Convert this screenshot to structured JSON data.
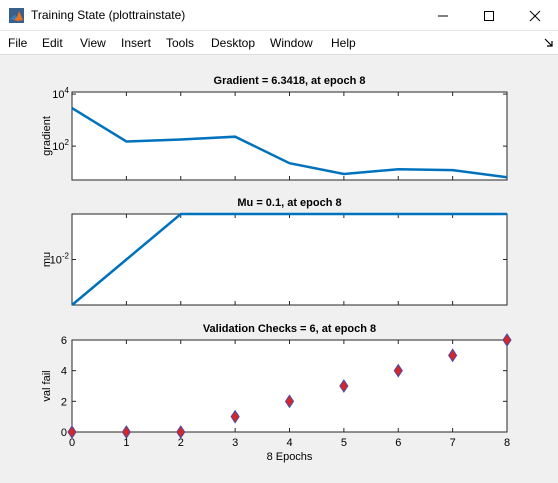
{
  "window": {
    "title": "Training State (plottrainstate)",
    "app_icon": "matlab-icon",
    "buttons": [
      "minimize-icon",
      "maximize-icon",
      "close-icon"
    ]
  },
  "menu": {
    "items": [
      "File",
      "Edit",
      "View",
      "Insert",
      "Tools",
      "Desktop",
      "Window",
      "Help"
    ],
    "dock_icon": "dock-arrow-icon"
  },
  "colors": {
    "line": "#0072bd",
    "marker_fill": "#d62728",
    "marker_edge": "#4a4aa8",
    "axes_bg": "#ffffff",
    "figure_bg": "#f0f0f0"
  },
  "chart_data": [
    {
      "type": "line",
      "title": "Gradient = 6.3418, at epoch 8",
      "ylabel": "gradient",
      "xlabel": "",
      "yscale": "log",
      "y_tick_labels": [
        {
          "base": "10",
          "exp": "4"
        },
        {
          "base": "10",
          "exp": "2"
        }
      ],
      "y_ticks": [
        10000,
        100
      ],
      "ylim": [
        5,
        12000
      ],
      "xlim": [
        0,
        8
      ],
      "x": [
        0,
        1,
        2,
        3,
        4,
        5,
        6,
        7,
        8
      ],
      "y": [
        2900,
        150,
        180,
        230,
        22,
        8.5,
        13,
        12,
        6.3418
      ]
    },
    {
      "type": "line",
      "title": "Mu = 0.1, at epoch 8",
      "ylabel": "mu",
      "xlabel": "",
      "yscale": "log",
      "y_tick_labels": [
        {
          "base": "10",
          "exp": "-2"
        }
      ],
      "y_ticks": [
        0.01
      ],
      "ylim": [
        0.001,
        0.1
      ],
      "xlim": [
        0,
        8
      ],
      "x": [
        0,
        1,
        2,
        3,
        4,
        5,
        6,
        7,
        8
      ],
      "y": [
        0.001,
        0.01,
        0.1,
        0.1,
        0.1,
        0.1,
        0.1,
        0.1,
        0.1
      ]
    },
    {
      "type": "scatter",
      "title": "Validation Checks = 6, at epoch 8",
      "ylabel": "val fail",
      "xlabel": "8 Epochs",
      "ylim": [
        0,
        6
      ],
      "y_ticks": [
        0,
        2,
        4,
        6
      ],
      "xlim": [
        0,
        8
      ],
      "x_ticks": [
        0,
        1,
        2,
        3,
        4,
        5,
        6,
        7,
        8
      ],
      "x": [
        0,
        1,
        2,
        3,
        4,
        5,
        6,
        7,
        8
      ],
      "y": [
        0,
        0,
        0,
        1,
        2,
        3,
        4,
        5,
        6
      ]
    }
  ]
}
